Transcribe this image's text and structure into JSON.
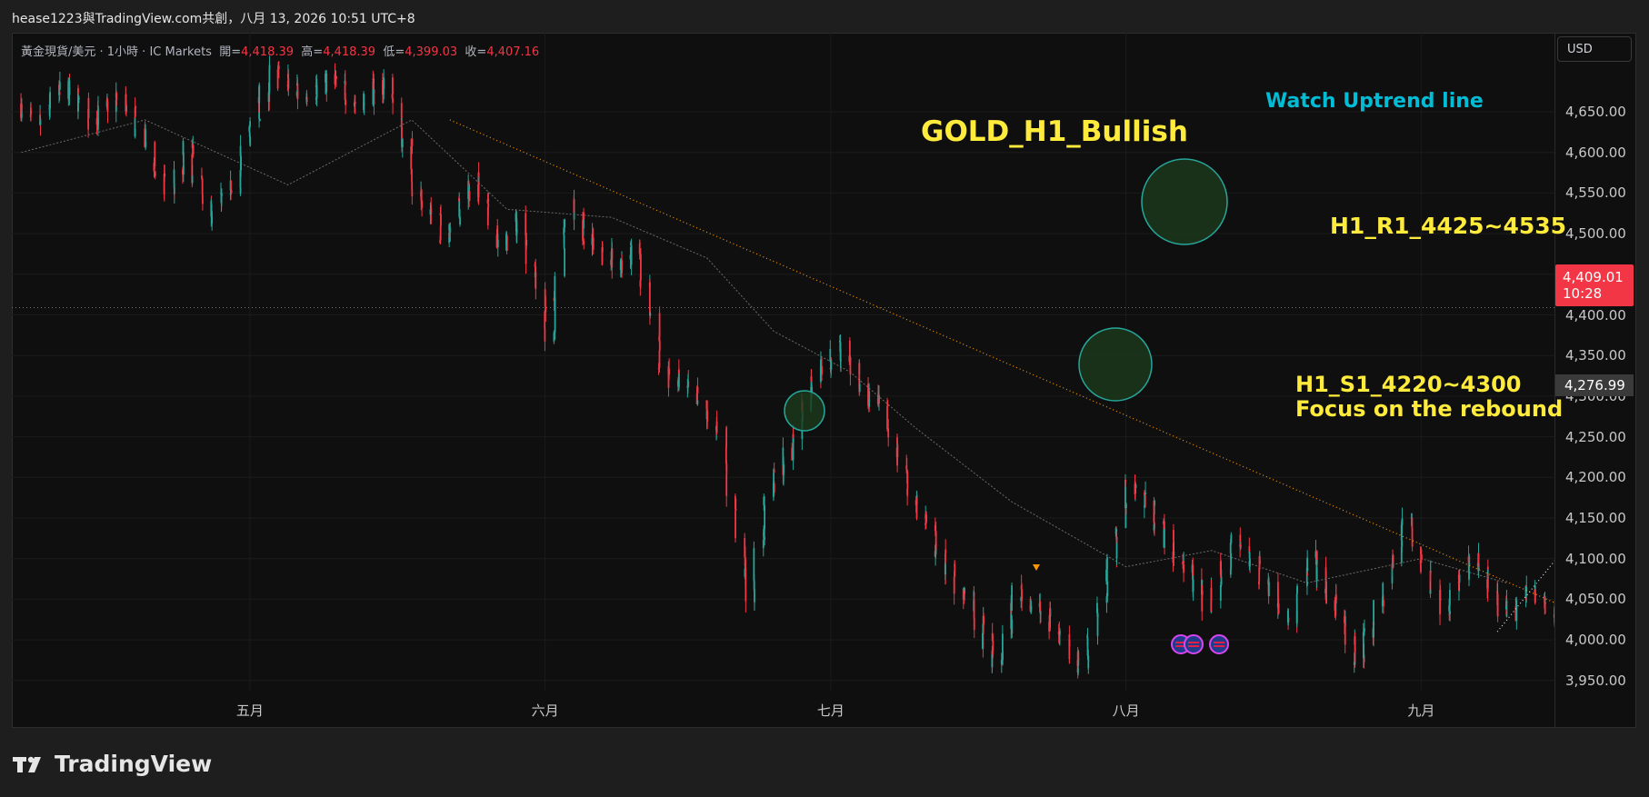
{
  "header": {
    "title": "hease1223與TradingView.com共創，八月 13, 2026 10:51 UTC+8"
  },
  "legend": {
    "symbol": "黃金現貨/美元 · 1小時 · IC Markets",
    "open_label": "開=",
    "open": "4,418.39",
    "high_label": "高=",
    "high": "4,418.39",
    "low_label": "低=",
    "low": "4,399.03",
    "close_label": "收=",
    "close": "4,407.16"
  },
  "currency_button": "USD",
  "annotations": {
    "title": "GOLD_H1_Bullish",
    "uptrend": "Watch Uptrend line",
    "r1": "H1_R1_4425~4535",
    "s1_line1": "H1_S1_4220~4300",
    "s1_line2": "Focus on  the rebound"
  },
  "price_tag": {
    "price": "4,409.01",
    "countdown": "10:28",
    "color": "#f23645"
  },
  "secondary_tag": "4,276.99",
  "footer": {
    "brand": "TradingView"
  },
  "colors": {
    "up": "#26a69a",
    "down": "#f23645",
    "annotation_yellow": "#ffeb3b",
    "annotation_cyan": "#00bcd4",
    "trendline_orange": "#ff9800",
    "circle_fill": "#1b3a1b",
    "circle_stroke": "#26a69a"
  },
  "chart_data": {
    "type": "candlestick",
    "title": "GOLD_H1_Bullish",
    "ylabel": "",
    "xlabel": "",
    "ylim": [
      3900,
      4700
    ],
    "grid": true,
    "y_ticks": [
      "4,650.00",
      "4,600.00",
      "4,550.00",
      "4,500.00",
      "4,450.00",
      "4,400.00",
      "4,350.00",
      "4,300.00",
      "4,250.00",
      "4,200.00",
      "4,150.00",
      "4,100.00",
      "4,050.00",
      "4,000.00",
      "3,950.00"
    ],
    "y_tick_values": [
      4650,
      4600,
      4550,
      4500,
      4450,
      4400,
      4350,
      4300,
      4250,
      4200,
      4150,
      4100,
      4050,
      4000,
      3950
    ],
    "x_ticks": [
      "五月",
      "六月",
      "七月",
      "八月",
      "九月"
    ],
    "x_tick_dates": [
      "2026-05-01",
      "2026-06-01",
      "2026-07-01",
      "2026-08-01",
      "2026-09-01"
    ],
    "xlim": [
      "2026-04-06",
      "2026-09-15"
    ],
    "price_path": [
      [
        "2026-04-07",
        4660
      ],
      [
        "2026-04-09",
        4630
      ],
      [
        "2026-04-12",
        4680
      ],
      [
        "2026-04-15",
        4640
      ],
      [
        "2026-04-18",
        4670
      ],
      [
        "2026-04-21",
        4600
      ],
      [
        "2026-04-23",
        4545
      ],
      [
        "2026-04-25",
        4610
      ],
      [
        "2026-04-27",
        4520
      ],
      [
        "2026-04-30",
        4560
      ],
      [
        "2026-05-02",
        4650
      ],
      [
        "2026-05-04",
        4700
      ],
      [
        "2026-05-07",
        4670
      ],
      [
        "2026-05-10",
        4690
      ],
      [
        "2026-05-13",
        4660
      ],
      [
        "2026-05-16",
        4690
      ],
      [
        "2026-05-19",
        4550
      ],
      [
        "2026-05-22",
        4500
      ],
      [
        "2026-05-25",
        4570
      ],
      [
        "2026-05-28",
        4480
      ],
      [
        "2026-05-30",
        4520
      ],
      [
        "2026-06-02",
        4370
      ],
      [
        "2026-06-04",
        4540
      ],
      [
        "2026-06-06",
        4500
      ],
      [
        "2026-06-09",
        4460
      ],
      [
        "2026-06-11",
        4480
      ],
      [
        "2026-06-14",
        4330
      ],
      [
        "2026-06-17",
        4300
      ],
      [
        "2026-06-20",
        4250
      ],
      [
        "2026-06-23",
        4050
      ],
      [
        "2026-06-25",
        4180
      ],
      [
        "2026-06-27",
        4230
      ],
      [
        "2026-06-30",
        4330
      ],
      [
        "2026-07-03",
        4360
      ],
      [
        "2026-07-05",
        4300
      ],
      [
        "2026-07-07",
        4280
      ],
      [
        "2026-07-10",
        4180
      ],
      [
        "2026-07-13",
        4100
      ],
      [
        "2026-07-16",
        4050
      ],
      [
        "2026-07-19",
        3965
      ],
      [
        "2026-07-21",
        4060
      ],
      [
        "2026-07-24",
        4030
      ],
      [
        "2026-07-26",
        4000
      ],
      [
        "2026-07-28",
        3965
      ],
      [
        "2026-07-31",
        4100
      ],
      [
        "2026-08-02",
        4200
      ],
      [
        "2026-08-04",
        4160
      ],
      [
        "2026-08-07",
        4100
      ],
      [
        "2026-08-10",
        4040
      ],
      [
        "2026-08-13",
        4120
      ],
      [
        "2026-08-16",
        4080
      ],
      [
        "2026-08-19",
        4020
      ],
      [
        "2026-08-21",
        4100
      ],
      [
        "2026-08-24",
        4030
      ],
      [
        "2026-08-26",
        3970
      ],
      [
        "2026-08-28",
        4040
      ],
      [
        "2026-08-31",
        4150
      ],
      [
        "2026-09-02",
        4080
      ],
      [
        "2026-09-04",
        4040
      ],
      [
        "2026-09-07",
        4100
      ],
      [
        "2026-09-09",
        4050
      ],
      [
        "2026-09-11",
        4030
      ],
      [
        "2026-09-13",
        4070
      ],
      [
        "2026-09-16",
        4020
      ],
      [
        "2026-09-18",
        4050
      ]
    ],
    "moving_average": [
      [
        "2026-04-07",
        4600
      ],
      [
        "2026-04-20",
        4640
      ],
      [
        "2026-05-05",
        4560
      ],
      [
        "2026-05-18",
        4640
      ],
      [
        "2026-05-28",
        4530
      ],
      [
        "2026-06-08",
        4520
      ],
      [
        "2026-06-18",
        4470
      ],
      [
        "2026-06-25",
        4380
      ],
      [
        "2026-07-03",
        4330
      ],
      [
        "2026-07-10",
        4260
      ],
      [
        "2026-07-20",
        4170
      ],
      [
        "2026-08-01",
        4090
      ],
      [
        "2026-08-10",
        4110
      ],
      [
        "2026-08-20",
        4070
      ],
      [
        "2026-09-01",
        4100
      ],
      [
        "2026-09-10",
        4070
      ]
    ],
    "horizontal_line": 4409.01,
    "trendlines": [
      {
        "name": "downtrend",
        "from": [
          "2026-05-22",
          4640
        ],
        "to": [
          "2026-09-22",
          4010
        ]
      },
      {
        "name": "uptrend",
        "from": [
          "2026-09-09",
          4010
        ],
        "to": [
          "2026-10-19",
          4590
        ]
      }
    ]
  }
}
